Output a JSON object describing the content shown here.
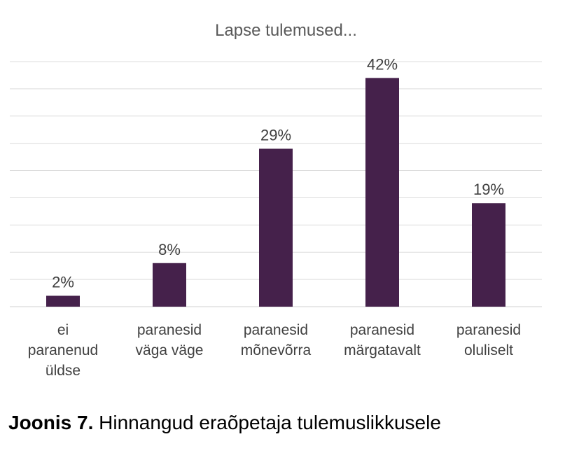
{
  "chart_data": {
    "type": "bar",
    "title": "Lapse tulemused...",
    "categories": [
      "ei paranenud üldse",
      "paranesid väga väge",
      "paranesid mõnevõrra",
      "paranesid märgatavalt",
      "paranesid oluliselt"
    ],
    "category_lines": [
      [
        "ei",
        "paranenud",
        "üldse"
      ],
      [
        "paranesid",
        "väga väge"
      ],
      [
        "paranesid",
        "mõnevõrra"
      ],
      [
        "paranesid",
        "märgatavalt"
      ],
      [
        "paranesid",
        "oluliselt"
      ]
    ],
    "values": [
      2,
      8,
      29,
      42,
      19
    ],
    "data_labels": [
      "2%",
      "8%",
      "29%",
      "42%",
      "19%"
    ],
    "unit": "%",
    "ylim": [
      0,
      45
    ],
    "grid": true,
    "bar_color": "#45214b",
    "legend": "none"
  },
  "caption": {
    "label": "Joonis 7.",
    "text": " Hinnangud eraõpetaja tulemuslikkusele"
  }
}
